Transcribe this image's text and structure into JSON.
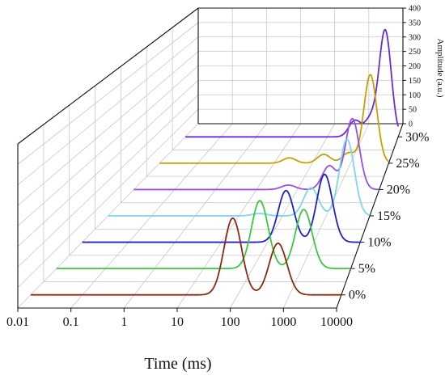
{
  "chart_data": {
    "type": "waterfall-line",
    "xlabel": "Time (ms)",
    "ylabel": "Amplitude (a.u.)",
    "x_scale": "log",
    "xlim": [
      0.01,
      10000
    ],
    "x_ticks": [
      "0.01",
      "0.1",
      "1",
      "10",
      "100",
      "1000",
      "10000"
    ],
    "ylim": [
      0,
      400
    ],
    "y_ticks": [
      "0",
      "50",
      "100",
      "150",
      "200",
      "250",
      "300",
      "350",
      "400"
    ],
    "series": [
      {
        "name": "0%",
        "color": "#8B2A10",
        "peaks": [
          {
            "t2_ms": 80,
            "amplitude": 260
          },
          {
            "t2_ms": 600,
            "amplitude": 175
          }
        ]
      },
      {
        "name": "5%",
        "color": "#3CC83C",
        "peaks": [
          {
            "t2_ms": 140,
            "amplitude": 230
          },
          {
            "t2_ms": 1100,
            "amplitude": 200
          }
        ]
      },
      {
        "name": "10%",
        "color": "#2020D0",
        "peaks": [
          {
            "t2_ms": 250,
            "amplitude": 175
          },
          {
            "t2_ms": 1700,
            "amplitude": 230
          }
        ]
      },
      {
        "name": "15%",
        "color": "#7FD4F0",
        "peaks": [
          {
            "t2_ms": 30,
            "amplitude": 8
          },
          {
            "t2_ms": 450,
            "amplitude": 95
          },
          {
            "t2_ms": 3000,
            "amplitude": 260
          }
        ]
      },
      {
        "name": "20%",
        "color": "#9A4FE0",
        "peaks": [
          {
            "t2_ms": 60,
            "amplitude": 15
          },
          {
            "t2_ms": 600,
            "amplitude": 80
          },
          {
            "t2_ms": 2200,
            "amplitude": 240
          }
        ]
      },
      {
        "name": "25%",
        "color": "#C8A000",
        "peaks": [
          {
            "t2_ms": 25,
            "amplitude": 18
          },
          {
            "t2_ms": 200,
            "amplitude": 30
          },
          {
            "t2_ms": 900,
            "amplitude": 35
          },
          {
            "t2_ms": 3300,
            "amplitude": 300
          }
        ]
      },
      {
        "name": "30%",
        "color": "#6A2CD8",
        "peaks": [
          {
            "t2_ms": 600,
            "amplitude": 55
          },
          {
            "t2_ms": 1700,
            "amplitude": 60
          },
          {
            "t2_ms": 4300,
            "amplitude": 360
          }
        ]
      }
    ]
  }
}
